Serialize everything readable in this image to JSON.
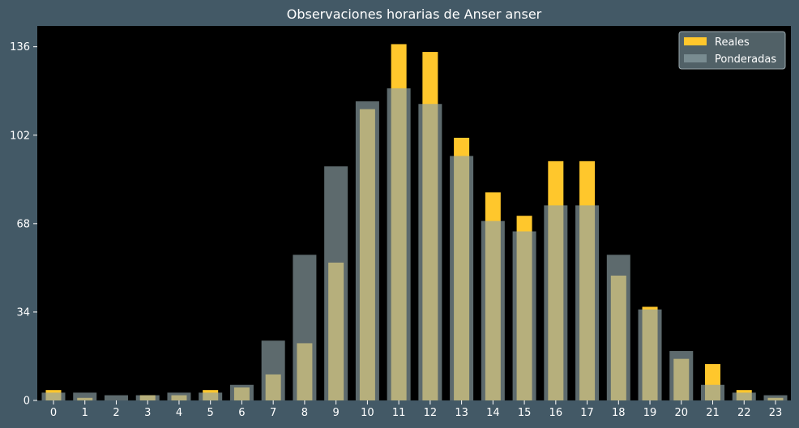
{
  "chart_data": {
    "type": "bar",
    "title": "Observaciones horarias de Anser anser",
    "xlabel": "",
    "ylabel": "",
    "categories": [
      "0",
      "1",
      "2",
      "3",
      "4",
      "5",
      "6",
      "7",
      "8",
      "9",
      "10",
      "11",
      "12",
      "13",
      "14",
      "15",
      "16",
      "17",
      "18",
      "19",
      "20",
      "21",
      "22",
      "23"
    ],
    "series": [
      {
        "name": "Reales",
        "color": "#ffc72c",
        "values": [
          4,
          1,
          0,
          2,
          2,
          4,
          5,
          10,
          22,
          53,
          112,
          137,
          134,
          101,
          80,
          71,
          92,
          92,
          48,
          36,
          16,
          14,
          4,
          1
        ]
      },
      {
        "name": "Ponderadas",
        "color": "#8fa3a8",
        "values": [
          3,
          3,
          2,
          2,
          3,
          3,
          6,
          23,
          56,
          90,
          115,
          120,
          114,
          94,
          69,
          65,
          75,
          75,
          56,
          35,
          19,
          6,
          3,
          2
        ]
      }
    ],
    "ylim": [
      0,
      144
    ],
    "yticks": [
      0,
      34,
      68,
      102,
      136
    ],
    "grid": false,
    "legend_position": "top-right",
    "plot_background": "#000000",
    "figure_background": "#435966"
  }
}
